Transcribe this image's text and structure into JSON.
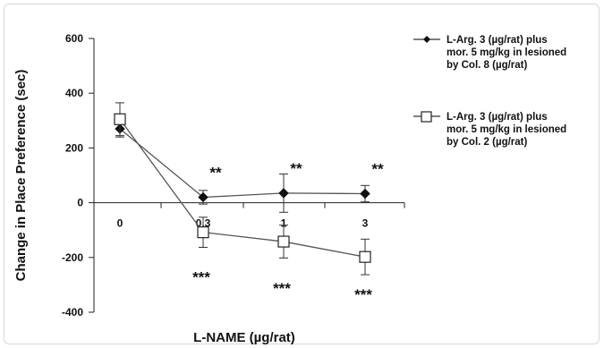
{
  "chart_data": {
    "type": "line",
    "xlabel": "L-NAME (µg/rat)",
    "ylabel": "Change in Place Preference (sec)",
    "categories": [
      "0",
      "0.3",
      "1",
      "3"
    ],
    "ylim": [
      -400,
      600
    ],
    "yticks": [
      "600",
      "400",
      "200",
      "0",
      "-200",
      "-400"
    ],
    "grid": false,
    "legend_position": "right",
    "series": [
      {
        "name_lines": [
          "L-Arg. 3 (µg/rat) plus",
          "mor. 5 mg/kg in lesioned",
          "by Col. 8 (µg/rat)"
        ],
        "marker": "diamond-filled",
        "values": [
          270,
          20,
          35,
          33
        ],
        "errors": [
          30,
          25,
          70,
          30
        ],
        "annotations": [
          "",
          "**",
          "**",
          "**"
        ]
      },
      {
        "name_lines": [
          "L-Arg. 3 (µg/rat) plus",
          "mor. 5 mg/kg in lesioned",
          "by Col. 2 (µg/rat)"
        ],
        "marker": "square-open",
        "values": [
          305,
          -108,
          -142,
          -198
        ],
        "errors": [
          60,
          55,
          60,
          65
        ],
        "annotations": [
          "",
          "***",
          "***",
          "***"
        ]
      }
    ]
  }
}
